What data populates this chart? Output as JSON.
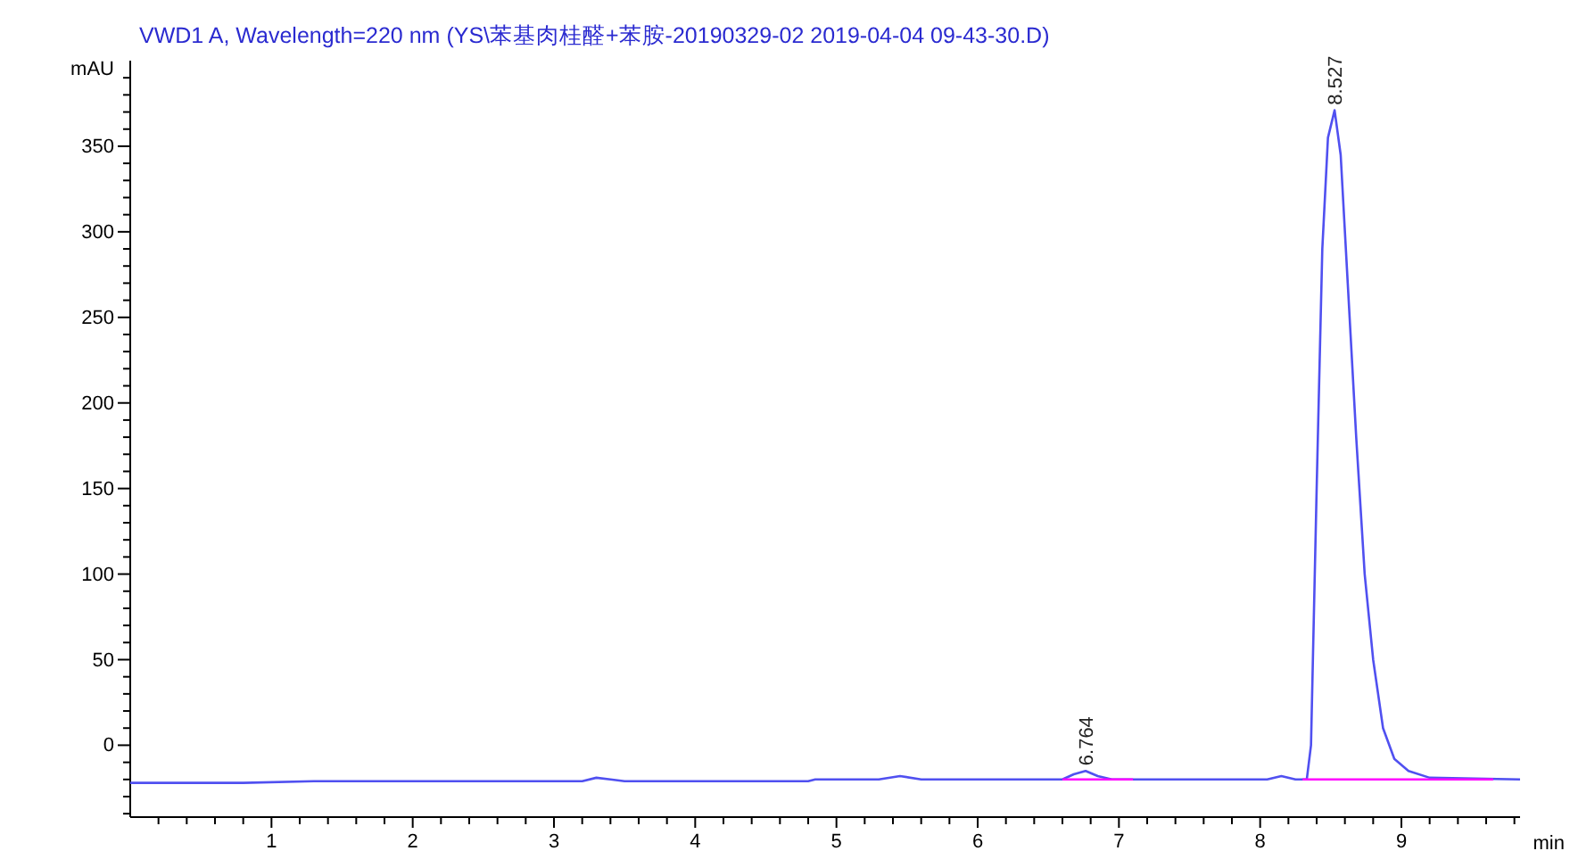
{
  "chart_data": {
    "type": "line",
    "title": "VWD1 A, Wavelength=220 nm (YS\\苯基肉桂醛+苯胺-20190329-02 2019-04-04 09-43-30.D)",
    "ylabel": "mAU",
    "xlabel": "min",
    "xlim": [
      0,
      9.84
    ],
    "ylim": [
      -42,
      400
    ],
    "xticks": [
      {
        "value": 0.2,
        "label": null
      },
      {
        "value": 0.4,
        "label": null
      },
      {
        "value": 0.6,
        "label": null
      },
      {
        "value": 0.8,
        "label": null
      },
      1,
      {
        "value": 1.2,
        "label": null
      },
      {
        "value": 1.4,
        "label": null
      },
      {
        "value": 1.6,
        "label": null
      },
      {
        "value": 1.8,
        "label": null
      },
      2,
      {
        "value": 2.2,
        "label": null
      },
      {
        "value": 2.4,
        "label": null
      },
      {
        "value": 2.6,
        "label": null
      },
      {
        "value": 2.8,
        "label": null
      },
      3,
      {
        "value": 3.2,
        "label": null
      },
      {
        "value": 3.4,
        "label": null
      },
      {
        "value": 3.6,
        "label": null
      },
      {
        "value": 3.8,
        "label": null
      },
      4,
      {
        "value": 4.2,
        "label": null
      },
      {
        "value": 4.4,
        "label": null
      },
      {
        "value": 4.6,
        "label": null
      },
      {
        "value": 4.8,
        "label": null
      },
      5,
      {
        "value": 5.2,
        "label": null
      },
      {
        "value": 5.4,
        "label": null
      },
      {
        "value": 5.6,
        "label": null
      },
      {
        "value": 5.8,
        "label": null
      },
      6,
      {
        "value": 6.2,
        "label": null
      },
      {
        "value": 6.4,
        "label": null
      },
      {
        "value": 6.6,
        "label": null
      },
      {
        "value": 6.8,
        "label": null
      },
      7,
      {
        "value": 7.2,
        "label": null
      },
      {
        "value": 7.4,
        "label": null
      },
      {
        "value": 7.6,
        "label": null
      },
      {
        "value": 7.8,
        "label": null
      },
      8,
      {
        "value": 8.2,
        "label": null
      },
      {
        "value": 8.4,
        "label": null
      },
      {
        "value": 8.6,
        "label": null
      },
      {
        "value": 8.8,
        "label": null
      },
      9,
      {
        "value": 9.2,
        "label": null
      },
      {
        "value": 9.4,
        "label": null
      },
      {
        "value": 9.6,
        "label": null
      },
      {
        "value": 9.8,
        "label": null
      }
    ],
    "yticks": [
      {
        "value": -40,
        "label": null
      },
      {
        "value": -30,
        "label": null
      },
      {
        "value": -20,
        "label": null
      },
      {
        "value": -10,
        "label": null
      },
      0,
      {
        "value": 10,
        "label": null
      },
      {
        "value": 20,
        "label": null
      },
      {
        "value": 30,
        "label": null
      },
      {
        "value": 40,
        "label": null
      },
      50,
      {
        "value": 60,
        "label": null
      },
      {
        "value": 70,
        "label": null
      },
      {
        "value": 80,
        "label": null
      },
      {
        "value": 90,
        "label": null
      },
      100,
      {
        "value": 110,
        "label": null
      },
      {
        "value": 120,
        "label": null
      },
      {
        "value": 130,
        "label": null
      },
      {
        "value": 140,
        "label": null
      },
      150,
      {
        "value": 160,
        "label": null
      },
      {
        "value": 170,
        "label": null
      },
      {
        "value": 180,
        "label": null
      },
      {
        "value": 190,
        "label": null
      },
      200,
      {
        "value": 210,
        "label": null
      },
      {
        "value": 220,
        "label": null
      },
      {
        "value": 230,
        "label": null
      },
      {
        "value": 240,
        "label": null
      },
      250,
      {
        "value": 260,
        "label": null
      },
      {
        "value": 270,
        "label": null
      },
      {
        "value": 280,
        "label": null
      },
      {
        "value": 290,
        "label": null
      },
      300,
      {
        "value": 310,
        "label": null
      },
      {
        "value": 320,
        "label": null
      },
      {
        "value": 330,
        "label": null
      },
      {
        "value": 340,
        "label": null
      },
      350,
      {
        "value": 360,
        "label": null
      },
      {
        "value": 370,
        "label": null
      },
      {
        "value": 380,
        "label": null
      },
      {
        "value": 390,
        "label": null
      }
    ],
    "grid": false,
    "series": [
      {
        "color": "#5050f0",
        "x": [
          0,
          0.6,
          0.8,
          1.3,
          1.35,
          3.2,
          3.3,
          3.4,
          3.5,
          4.8,
          4.85,
          5.3,
          5.45,
          5.6,
          6.6,
          6.68,
          6.764,
          6.85,
          6.95,
          8.05,
          8.15,
          8.25,
          8.33,
          8.36,
          8.4,
          8.44,
          8.48,
          8.527,
          8.57,
          8.62,
          8.68,
          8.74,
          8.8,
          8.87,
          8.95,
          9.05,
          9.2,
          9.84
        ],
        "values": [
          -22,
          -22,
          -22,
          -21,
          -21,
          -21,
          -19,
          -20,
          -21,
          -21,
          -20,
          -20,
          -18,
          -20,
          -20,
          -17,
          -15,
          -18,
          -20,
          -20,
          -18,
          -20,
          -20,
          0,
          150,
          290,
          355,
          371,
          345,
          270,
          180,
          100,
          50,
          10,
          -8,
          -15,
          -19,
          -20
        ]
      },
      {
        "color": "#ff00ff",
        "x": [
          6.6,
          7.1
        ],
        "values": [
          -20,
          -20
        ]
      },
      {
        "color": "#ff00ff",
        "x": [
          8.3,
          9.65
        ],
        "values": [
          -20,
          -20
        ]
      }
    ],
    "annotations": [
      {
        "text": "6.764",
        "x": 6.764,
        "y": -15
      },
      {
        "text": "8.527",
        "x": 8.527,
        "y": 371
      }
    ]
  }
}
